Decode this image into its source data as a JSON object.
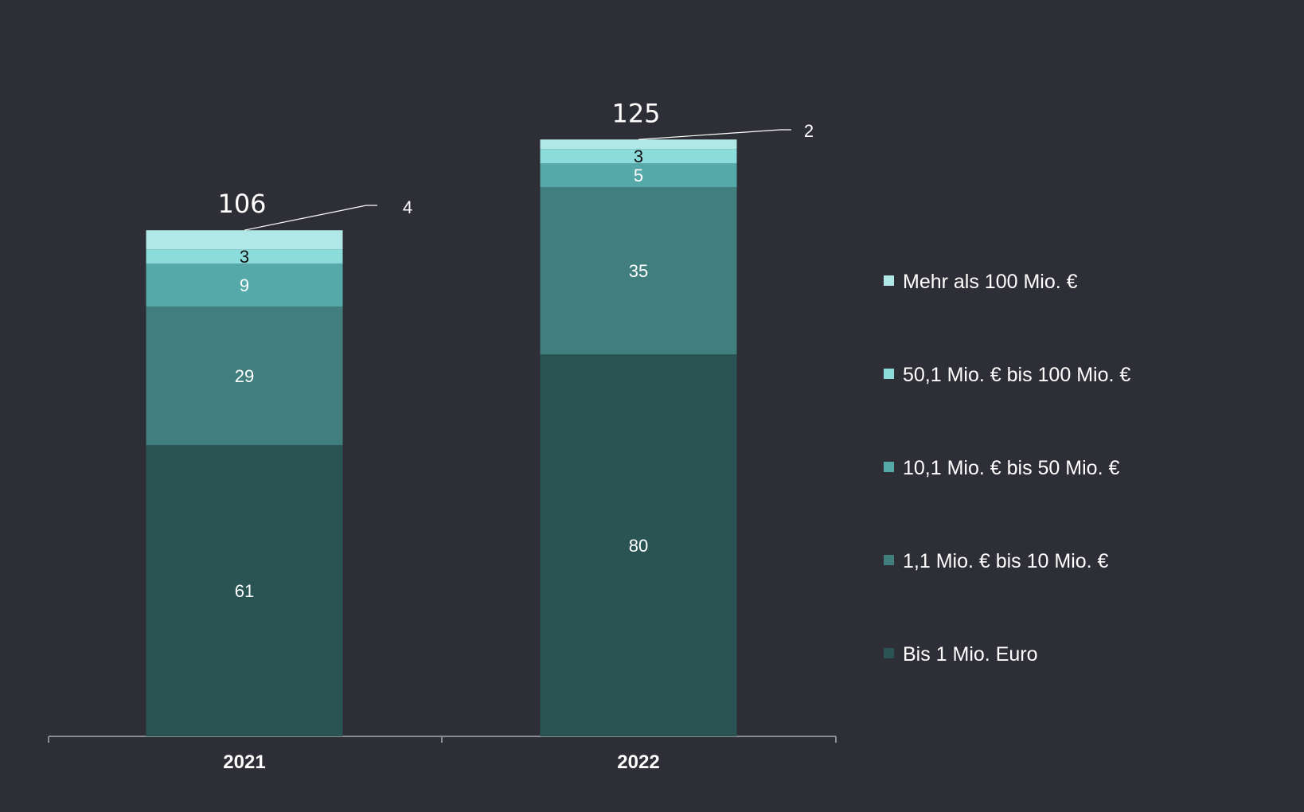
{
  "chart_data": {
    "type": "bar",
    "stacked": true,
    "categories": [
      "2021",
      "2022"
    ],
    "totals": [
      106,
      125
    ],
    "series": [
      {
        "name": "Bis 1 Mio. Euro",
        "values": [
          61,
          80
        ],
        "color": "#2a5454",
        "label_color": "#ffffff"
      },
      {
        "name": "1,1 Mio. € bis 10 Mio. €",
        "values": [
          29,
          35
        ],
        "color": "#417f7e",
        "label_color": "#ffffff"
      },
      {
        "name": "10,1 Mio. € bis 50 Mio. €",
        "values": [
          9,
          5
        ],
        "color": "#55a9a9",
        "label_color": "#ffffff"
      },
      {
        "name": "50,1 Mio. € bis 100 Mio. €",
        "values": [
          3,
          3
        ],
        "color": "#8cdcdb",
        "label_color": "#111111"
      },
      {
        "name": "Mehr als 100 Mio. €",
        "values": [
          4,
          2
        ],
        "color": "#b0e8e8",
        "label_color": "#ffffff"
      }
    ],
    "legend_position": "right",
    "grid": false,
    "ylim": [
      0,
      125
    ]
  }
}
